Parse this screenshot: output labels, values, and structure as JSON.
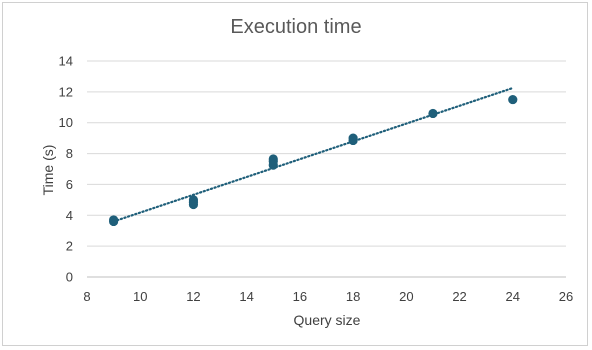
{
  "chart_data": {
    "type": "scatter",
    "title": "Execution time",
    "xlabel": "Query size",
    "ylabel": "Time (s)",
    "xlim": [
      8,
      26
    ],
    "ylim": [
      0,
      14
    ],
    "x_ticks": [
      8,
      10,
      12,
      14,
      16,
      18,
      20,
      22,
      24,
      26
    ],
    "y_ticks": [
      0,
      2,
      4,
      6,
      8,
      10,
      12,
      14
    ],
    "grid": "horizontal",
    "legend": "none",
    "point_color": "#1f5f7a",
    "trendline": {
      "type": "linear",
      "style": "dotted",
      "color": "#1f5f7a",
      "x_range": [
        9,
        24
      ],
      "y_range": [
        3.6,
        12.25
      ]
    },
    "points": [
      {
        "x": 9,
        "y": 3.7
      },
      {
        "x": 9,
        "y": 3.6
      },
      {
        "x": 12,
        "y": 5.0
      },
      {
        "x": 12,
        "y": 4.85
      },
      {
        "x": 12,
        "y": 4.7
      },
      {
        "x": 15,
        "y": 7.65
      },
      {
        "x": 15,
        "y": 7.5
      },
      {
        "x": 15,
        "y": 7.25
      },
      {
        "x": 18,
        "y": 9.0
      },
      {
        "x": 18,
        "y": 8.85
      },
      {
        "x": 21,
        "y": 10.6
      },
      {
        "x": 24,
        "y": 11.5
      }
    ]
  }
}
